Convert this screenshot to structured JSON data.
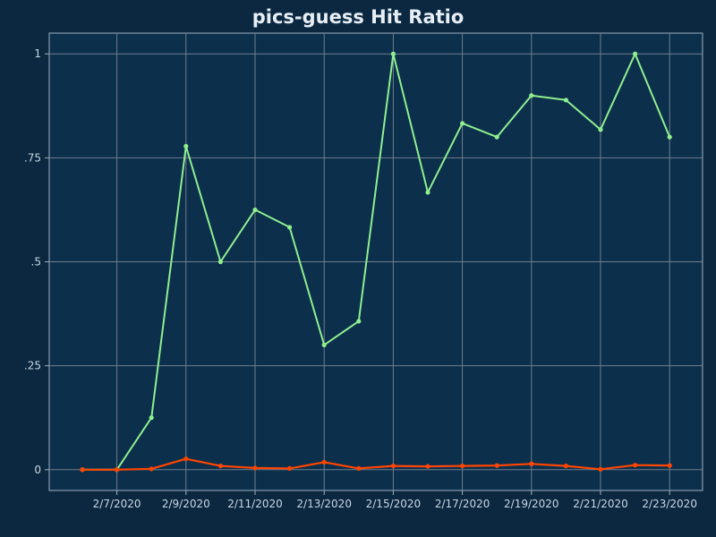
{
  "chart_data": {
    "type": "line",
    "title": "pics-guess Hit Ratio",
    "xlabel": "",
    "ylabel": "",
    "x": [
      "2/6/2020",
      "2/7/2020",
      "2/8/2020",
      "2/9/2020",
      "2/10/2020",
      "2/11/2020",
      "2/12/2020",
      "2/13/2020",
      "2/14/2020",
      "2/15/2020",
      "2/16/2020",
      "2/17/2020",
      "2/18/2020",
      "2/19/2020",
      "2/20/2020",
      "2/21/2020",
      "2/22/2020",
      "2/23/2020"
    ],
    "x_tick_labels": [
      "2/7/2020",
      "2/9/2020",
      "2/11/2020",
      "2/13/2020",
      "2/15/2020",
      "2/17/2020",
      "2/19/2020",
      "2/21/2020",
      "2/23/2020"
    ],
    "y_tick_labels": [
      "0",
      ".25",
      ".5",
      ".75",
      "1"
    ],
    "ylim": [
      -0.05,
      1.05
    ],
    "grid": true,
    "legend": "none",
    "series": [
      {
        "color": "#90ee90",
        "values": [
          0,
          0,
          0.125,
          0.778,
          0.5,
          0.625,
          0.583,
          0.3,
          0.357,
          1.0,
          0.667,
          0.833,
          0.8,
          0.9,
          0.889,
          0.818,
          1.0,
          0.8
        ]
      },
      {
        "color": "#ff4500",
        "values": [
          0,
          0,
          0.002,
          0.026,
          0.009,
          0.004,
          0.003,
          0.018,
          0.003,
          0.009,
          0.008,
          0.009,
          0.01,
          0.014,
          0.009,
          0.001,
          0.011,
          0.01
        ]
      }
    ],
    "colors": {
      "page_background": "#0b2840",
      "plot_background": "#0c2f4c",
      "grid": "#6f7f8e",
      "text": "#c9d6e2"
    }
  }
}
